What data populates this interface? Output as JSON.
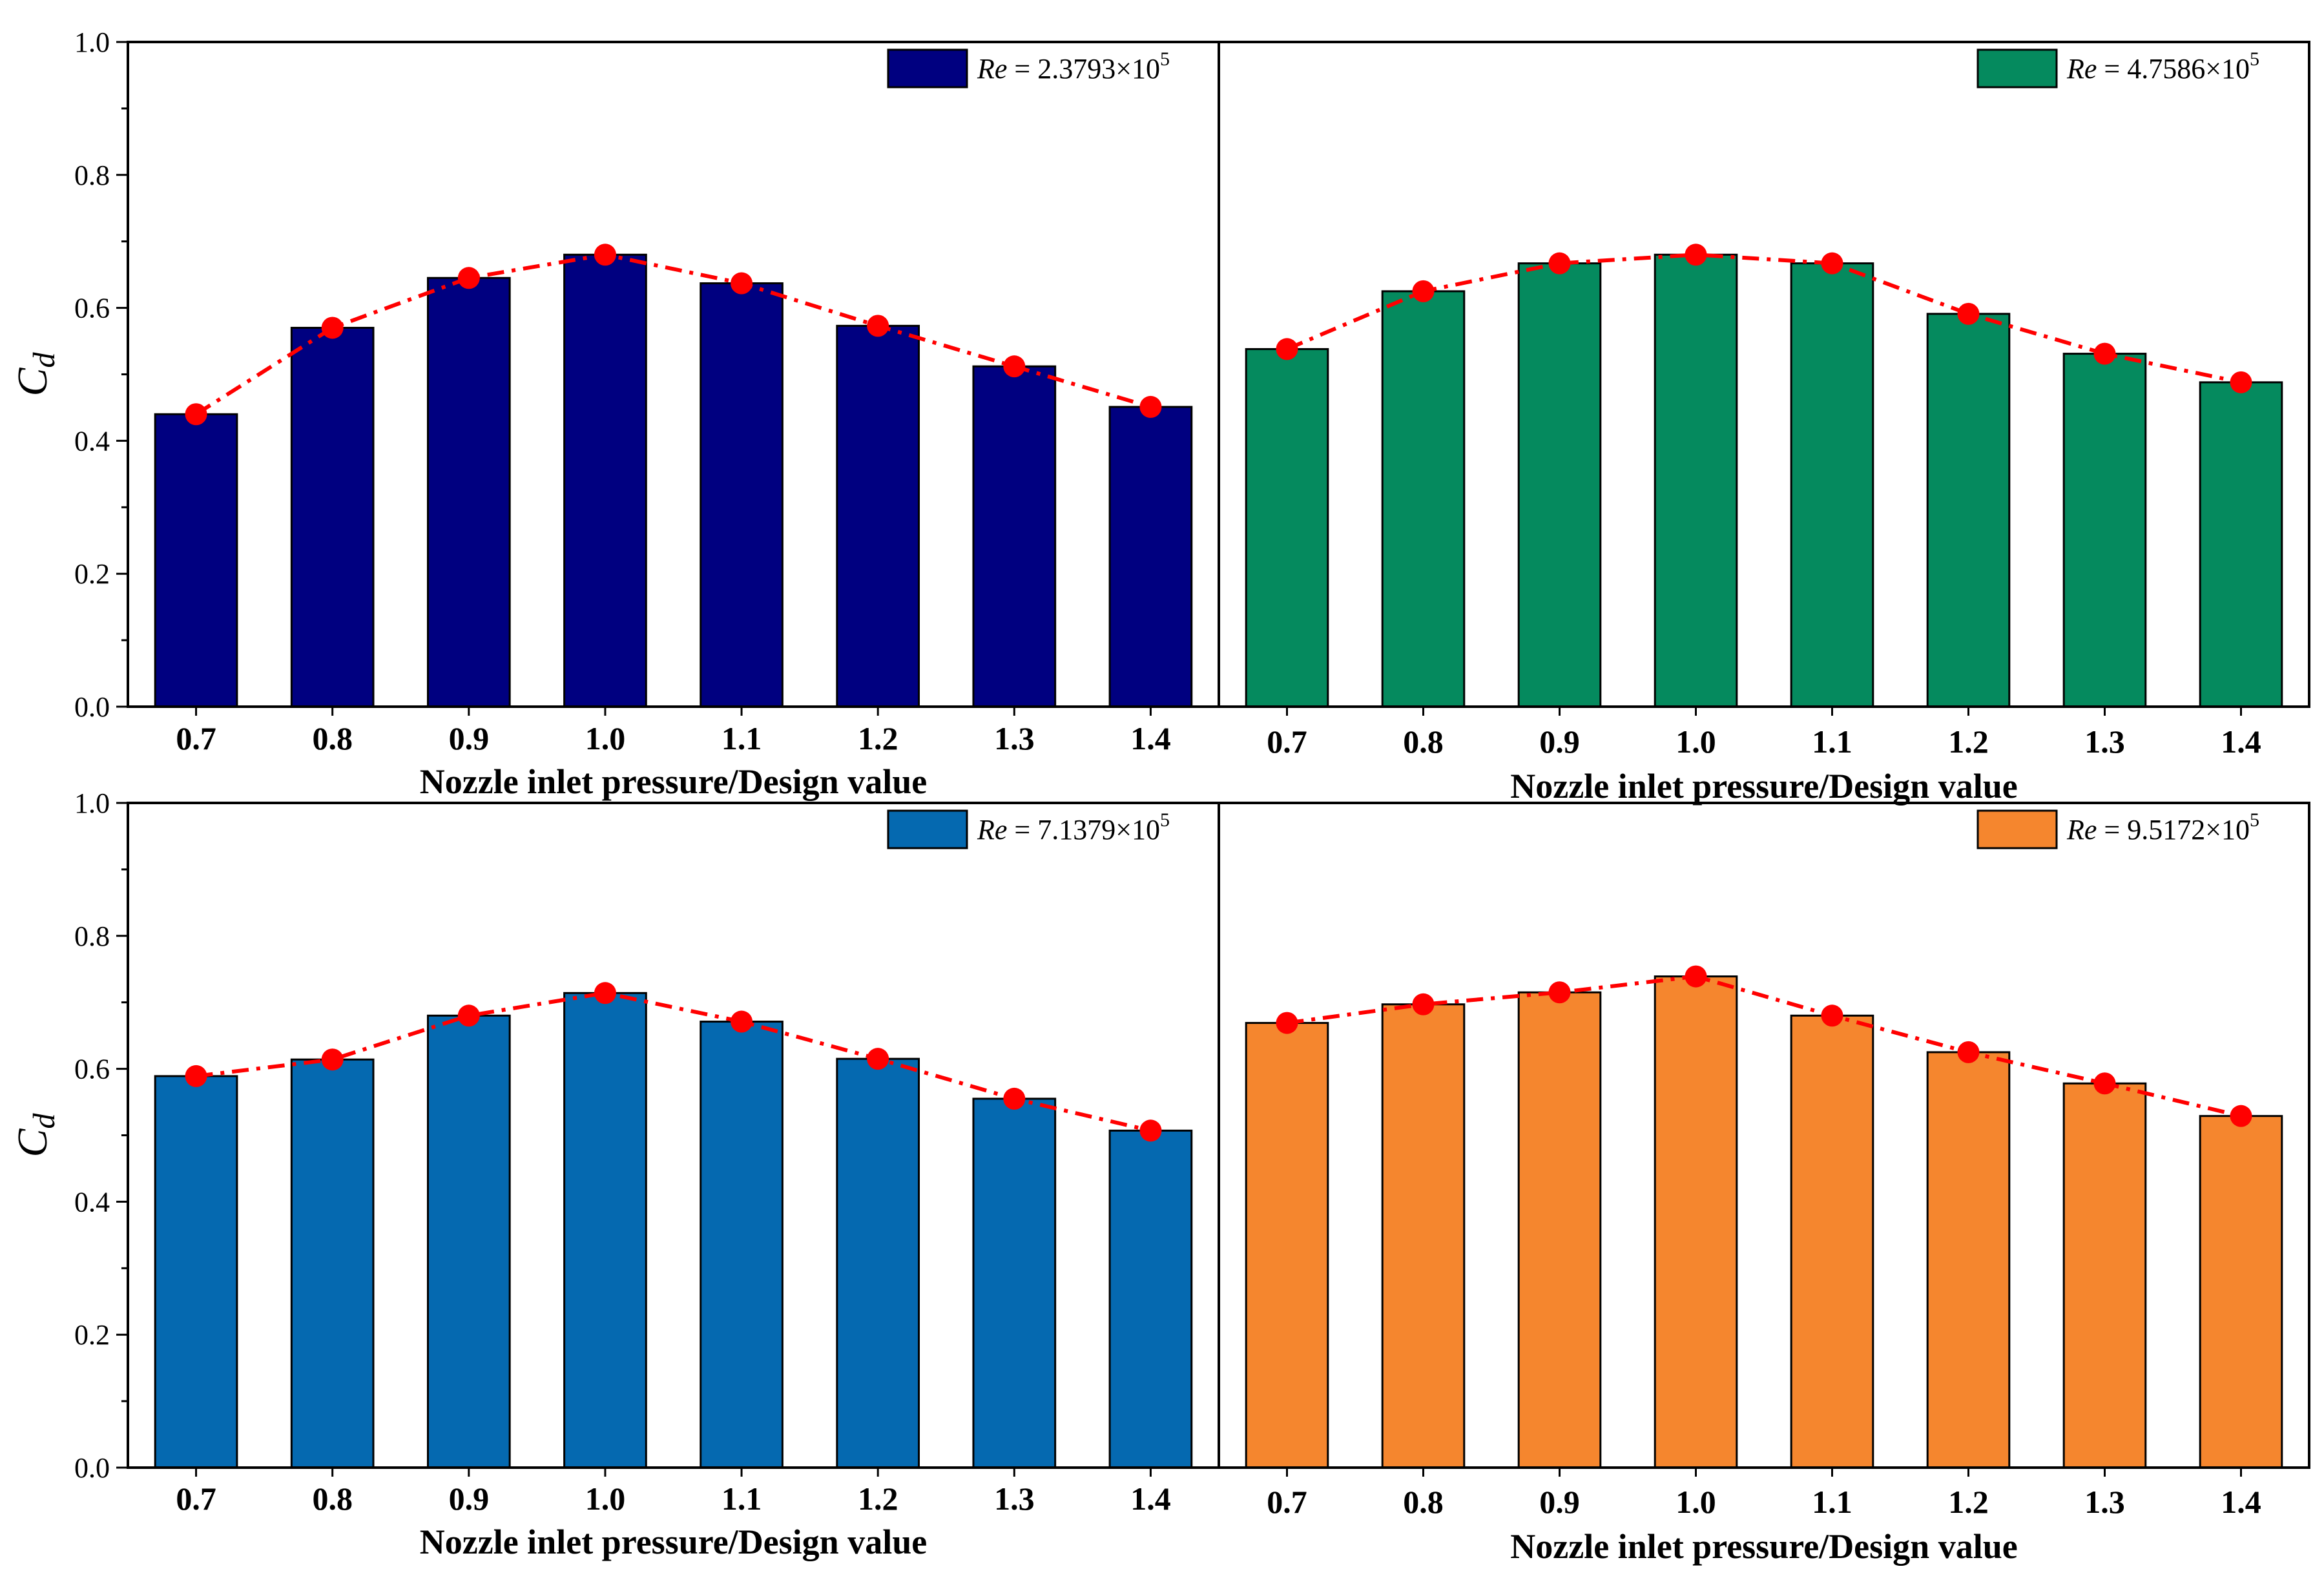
{
  "chart_data": [
    {
      "type": "bar",
      "legend": {
        "label_var": "Re",
        "label_rest": " = 2.3793×10",
        "label_exp": "5",
        "color": "#000080"
      },
      "categories": [
        "0.7",
        "0.8",
        "0.9",
        "1.0",
        "1.1",
        "1.2",
        "1.3",
        "1.4"
      ],
      "values": [
        0.44,
        0.57,
        0.645,
        0.68,
        0.637,
        0.573,
        0.512,
        0.451
      ],
      "line_values": [
        0.44,
        0.57,
        0.645,
        0.68,
        0.637,
        0.573,
        0.512,
        0.451
      ],
      "xlabel": "Nozzle inlet pressure/Design value",
      "ylabel_main": "C",
      "ylabel_sub": "d",
      "ylim": [
        0,
        1.0
      ],
      "yticks": [
        "0.0",
        "0.2",
        "0.4",
        "0.6",
        "0.8",
        "1.0"
      ]
    },
    {
      "type": "bar",
      "legend": {
        "label_var": "Re",
        "label_rest": " = 4.7586×10",
        "label_exp": "5",
        "color": "#058a5e"
      },
      "categories": [
        "0.7",
        "0.8",
        "0.9",
        "1.0",
        "1.1",
        "1.2",
        "1.3",
        "1.4"
      ],
      "values": [
        0.538,
        0.625,
        0.667,
        0.68,
        0.667,
        0.591,
        0.531,
        0.488
      ],
      "line_values": [
        0.538,
        0.625,
        0.667,
        0.68,
        0.667,
        0.591,
        0.531,
        0.488
      ],
      "xlabel": "Nozzle inlet pressure/Design value",
      "ylim": [
        0,
        1.0
      ]
    },
    {
      "type": "bar",
      "legend": {
        "label_var": "Re",
        "label_rest": " = 7.1379×10",
        "label_exp": "5",
        "color": "#0569b0"
      },
      "categories": [
        "0.7",
        "0.8",
        "0.9",
        "1.0",
        "1.1",
        "1.2",
        "1.3",
        "1.4"
      ],
      "values": [
        0.589,
        0.614,
        0.68,
        0.714,
        0.671,
        0.615,
        0.555,
        0.507
      ],
      "line_values": [
        0.589,
        0.614,
        0.68,
        0.714,
        0.671,
        0.615,
        0.555,
        0.507
      ],
      "xlabel": "Nozzle inlet pressure/Design value",
      "ylabel_main": "C",
      "ylabel_sub": "d",
      "ylim": [
        0,
        1.0
      ],
      "yticks": [
        "0.0",
        "0.2",
        "0.4",
        "0.6",
        "0.8",
        "1.0"
      ]
    },
    {
      "type": "bar",
      "legend": {
        "label_var": "Re",
        "label_rest": " = 9.5172×10",
        "label_exp": "5",
        "color": "#f5862e"
      },
      "categories": [
        "0.7",
        "0.8",
        "0.9",
        "1.0",
        "1.1",
        "1.2",
        "1.3",
        "1.4"
      ],
      "values": [
        0.669,
        0.697,
        0.715,
        0.739,
        0.68,
        0.625,
        0.578,
        0.529
      ],
      "line_values": [
        0.669,
        0.697,
        0.715,
        0.739,
        0.68,
        0.625,
        0.578,
        0.529
      ],
      "xlabel": "Nozzle inlet pressure/Design value",
      "ylim": [
        0,
        1.0
      ]
    }
  ],
  "style": {
    "line_color": "#ff0000",
    "marker_color": "#ff0000",
    "axis_color": "#000000"
  }
}
